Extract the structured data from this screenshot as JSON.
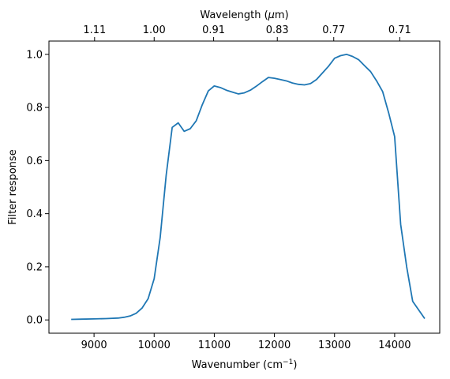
{
  "chart_data": {
    "type": "line",
    "xlabel_main": "Wavenumber (cm",
    "xlabel_sup": "−1",
    "xlabel_close": ")",
    "ylabel": "Filter response",
    "top_xlabel_main": "Wavelength (",
    "top_xlabel_mu": "μ",
    "top_xlabel_close": "m)",
    "xlim": [
      8250,
      14750
    ],
    "ylim": [
      -0.05,
      1.05
    ],
    "xticks": [
      9000,
      10000,
      11000,
      12000,
      13000,
      14000
    ],
    "yticks": [
      "0.0",
      "0.2",
      "0.4",
      "0.6",
      "0.8",
      "1.0"
    ],
    "top_ticks": [
      {
        "label": "1.11",
        "wavenumber": 9009
      },
      {
        "label": "1.00",
        "wavenumber": 10000
      },
      {
        "label": "0.91",
        "wavenumber": 10989
      },
      {
        "label": "0.83",
        "wavenumber": 12048
      },
      {
        "label": "0.77",
        "wavenumber": 12987
      },
      {
        "label": "0.71",
        "wavenumber": 14085
      }
    ],
    "color": "#1f77b4",
    "grid": false,
    "series": [
      {
        "x": [
          8620,
          8800,
          9000,
          9200,
          9400,
          9500,
          9600,
          9700,
          9800,
          9900,
          10000,
          10100,
          10200,
          10300,
          10400,
          10500,
          10600,
          10700,
          10800,
          10900,
          11000,
          11100,
          11200,
          11300,
          11400,
          11500,
          11600,
          11700,
          11800,
          11900,
          12000,
          12100,
          12200,
          12300,
          12400,
          12500,
          12600,
          12700,
          12800,
          12900,
          13000,
          13100,
          13200,
          13300,
          13400,
          13500,
          13600,
          13700,
          13800,
          13900,
          14000,
          14100,
          14200,
          14300,
          14500
        ],
        "y": [
          0.002,
          0.003,
          0.004,
          0.005,
          0.007,
          0.01,
          0.015,
          0.025,
          0.045,
          0.08,
          0.155,
          0.31,
          0.545,
          0.725,
          0.742,
          0.71,
          0.72,
          0.75,
          0.81,
          0.862,
          0.881,
          0.875,
          0.865,
          0.858,
          0.851,
          0.855,
          0.865,
          0.88,
          0.897,
          0.913,
          0.91,
          0.905,
          0.9,
          0.892,
          0.887,
          0.885,
          0.89,
          0.905,
          0.93,
          0.955,
          0.985,
          0.995,
          1.0,
          0.992,
          0.98,
          0.957,
          0.935,
          0.9,
          0.86,
          0.78,
          0.69,
          0.36,
          0.2,
          0.07,
          0.005
        ]
      }
    ]
  }
}
